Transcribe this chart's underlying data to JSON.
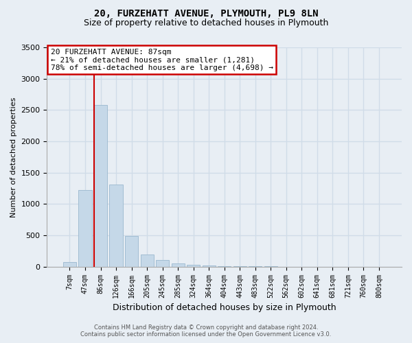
{
  "title1": "20, FURZEHATT AVENUE, PLYMOUTH, PL9 8LN",
  "title2": "Size of property relative to detached houses in Plymouth",
  "xlabel": "Distribution of detached houses by size in Plymouth",
  "ylabel": "Number of detached properties",
  "categories": [
    "7sqm",
    "47sqm",
    "86sqm",
    "126sqm",
    "166sqm",
    "205sqm",
    "245sqm",
    "285sqm",
    "324sqm",
    "364sqm",
    "404sqm",
    "443sqm",
    "483sqm",
    "522sqm",
    "562sqm",
    "602sqm",
    "641sqm",
    "681sqm",
    "721sqm",
    "760sqm",
    "800sqm"
  ],
  "values": [
    75,
    1220,
    2580,
    1310,
    490,
    190,
    105,
    55,
    30,
    20,
    10,
    8,
    5,
    3,
    2,
    2,
    1,
    1,
    1,
    1,
    1
  ],
  "bar_color": "#c5d8e8",
  "bar_edge_color": "#9ab8ce",
  "vline_color": "#cc0000",
  "vline_index": 2,
  "annotation_line1": "20 FURZEHATT AVENUE: 87sqm",
  "annotation_line2": "← 21% of detached houses are smaller (1,281)",
  "annotation_line3": "78% of semi-detached houses are larger (4,698) →",
  "annotation_box_facecolor": "#ffffff",
  "annotation_box_edgecolor": "#cc0000",
  "ylim": [
    0,
    3500
  ],
  "yticks": [
    0,
    500,
    1000,
    1500,
    2000,
    2500,
    3000,
    3500
  ],
  "grid_color": "#d0dce8",
  "bg_color": "#e8eef4",
  "footer1": "Contains HM Land Registry data © Crown copyright and database right 2024.",
  "footer2": "Contains public sector information licensed under the Open Government Licence v3.0.",
  "title1_fontsize": 10,
  "title2_fontsize": 9,
  "ylabel_fontsize": 8,
  "xlabel_fontsize": 9,
  "tick_fontsize": 7,
  "footer_fontsize": 6,
  "annot_fontsize": 8
}
